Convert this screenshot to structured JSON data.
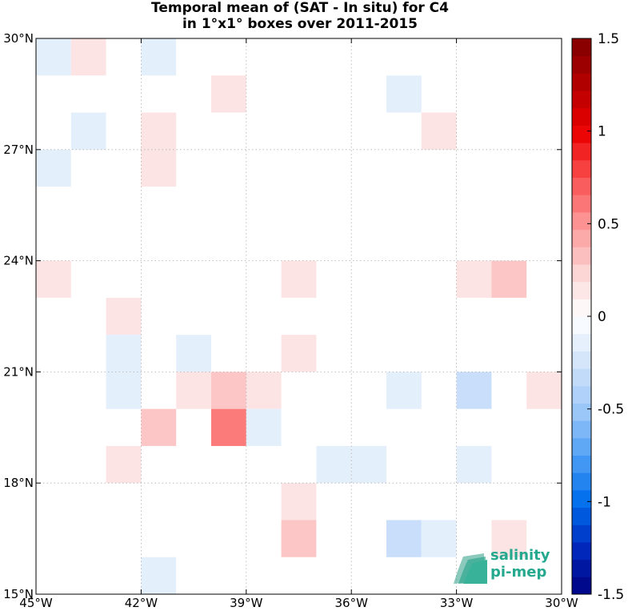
{
  "title_line1": "Temporal mean of (SAT - In situ) for C4",
  "title_line2": "in 1°x1° boxes over 2011-2015",
  "logo": {
    "line1": "salinity",
    "line2": "pi-mep"
  },
  "colors": {
    "positive_max": "#800000",
    "negative_max": "#00007f",
    "zero": "#ffffff",
    "logo": "#24a88e",
    "grid": "#b0b0b0"
  },
  "chart_data": {
    "type": "heatmap",
    "title": "Temporal mean of (SAT - In situ) for C4 in 1°x1° boxes over 2011-2015",
    "x_ticks": [
      "45°W",
      "42°W",
      "39°W",
      "36°W",
      "33°W",
      "30°W"
    ],
    "x_tick_values": [
      -45,
      -42,
      -39,
      -36,
      -33,
      -30
    ],
    "y_ticks": [
      "30°N",
      "27°N",
      "24°N",
      "21°N",
      "18°N",
      "15°N"
    ],
    "y_tick_values": [
      30,
      27,
      24,
      21,
      18,
      15
    ],
    "xlim": [
      -45,
      -30
    ],
    "ylim": [
      15,
      30
    ],
    "grid": true,
    "colorbar": {
      "range": [
        -1.5,
        1.5
      ],
      "steps": 32,
      "ticks": [
        "1.5",
        "1",
        "0.5",
        "0",
        "-0.5",
        "-1",
        "-1.5"
      ],
      "tick_values": [
        1.5,
        1,
        0.5,
        0,
        -0.5,
        -1,
        -1.5
      ],
      "placement": "right"
    },
    "cells": [
      {
        "lon": -45,
        "lat": 29,
        "value": -0.15
      },
      {
        "lon": -44,
        "lat": 29,
        "value": 0.15
      },
      {
        "lon": -42,
        "lat": 29,
        "value": -0.15
      },
      {
        "lon": -40,
        "lat": 28,
        "value": 0.15
      },
      {
        "lon": -35,
        "lat": 28,
        "value": -0.15
      },
      {
        "lon": -44,
        "lat": 27,
        "value": -0.15
      },
      {
        "lon": -42,
        "lat": 27,
        "value": 0.15
      },
      {
        "lon": -34,
        "lat": 27,
        "value": 0.15
      },
      {
        "lon": -45,
        "lat": 26,
        "value": -0.15
      },
      {
        "lon": -42,
        "lat": 26,
        "value": 0.15
      },
      {
        "lon": -45,
        "lat": 23,
        "value": 0.15
      },
      {
        "lon": -38,
        "lat": 23,
        "value": 0.15
      },
      {
        "lon": -33,
        "lat": 23,
        "value": 0.15
      },
      {
        "lon": -32,
        "lat": 23,
        "value": 0.3
      },
      {
        "lon": -43,
        "lat": 22,
        "value": 0.15
      },
      {
        "lon": -43,
        "lat": 21,
        "value": -0.15
      },
      {
        "lon": -41,
        "lat": 21,
        "value": -0.15
      },
      {
        "lon": -38,
        "lat": 21,
        "value": 0.15
      },
      {
        "lon": -43,
        "lat": 20,
        "value": -0.15
      },
      {
        "lon": -41,
        "lat": 20,
        "value": 0.15
      },
      {
        "lon": -40,
        "lat": 20,
        "value": 0.3
      },
      {
        "lon": -39,
        "lat": 20,
        "value": 0.15
      },
      {
        "lon": -35,
        "lat": 20,
        "value": -0.15
      },
      {
        "lon": -33,
        "lat": 20,
        "value": -0.3
      },
      {
        "lon": -31,
        "lat": 20,
        "value": 0.15
      },
      {
        "lon": -42,
        "lat": 19,
        "value": 0.3
      },
      {
        "lon": -40,
        "lat": 19,
        "value": 0.6
      },
      {
        "lon": -39,
        "lat": 19,
        "value": -0.15
      },
      {
        "lon": -43,
        "lat": 18,
        "value": 0.15
      },
      {
        "lon": -37,
        "lat": 18,
        "value": -0.15
      },
      {
        "lon": -36,
        "lat": 18,
        "value": -0.15
      },
      {
        "lon": -33,
        "lat": 18,
        "value": -0.15
      },
      {
        "lon": -38,
        "lat": 17,
        "value": 0.15
      },
      {
        "lon": -38,
        "lat": 16,
        "value": 0.3
      },
      {
        "lon": -35,
        "lat": 16,
        "value": -0.3
      },
      {
        "lon": -34,
        "lat": 16,
        "value": -0.15
      },
      {
        "lon": -32,
        "lat": 16,
        "value": 0.15
      },
      {
        "lon": -42,
        "lat": 15,
        "value": -0.15
      }
    ]
  }
}
